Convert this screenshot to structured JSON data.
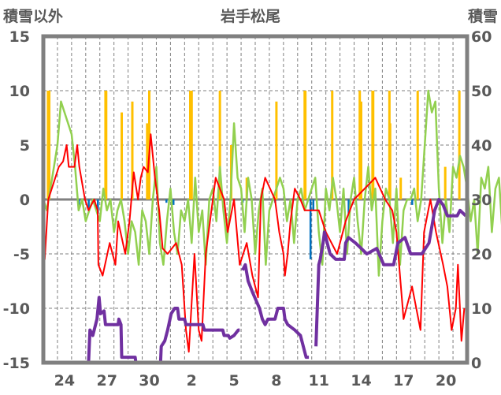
{
  "chart_data": {
    "type": "line",
    "title": "岩手松尾",
    "ylabel_left": "積雪以外",
    "ylabel_right": "積雪",
    "ylim_left": [
      -15,
      15
    ],
    "ylim_right": [
      0,
      60
    ],
    "yticks_left": [
      "15",
      "10",
      "5",
      "0",
      "-5",
      "-10",
      "-15"
    ],
    "yticks_left_values": [
      15,
      10,
      5,
      0,
      -5,
      -10,
      -15
    ],
    "yticks_right": [
      "60",
      "50",
      "40",
      "30",
      "20",
      "10",
      "0"
    ],
    "yticks_right_values": [
      60,
      50,
      40,
      30,
      20,
      10,
      0
    ],
    "xlim_days": [
      0,
      30
    ],
    "xtick_labels": [
      "24",
      "27",
      "30",
      "2",
      "5",
      "8",
      "11",
      "14",
      "17",
      "20"
    ],
    "xtick_day_centers": [
      1.5,
      4.5,
      7.5,
      10.5,
      13.5,
      16.5,
      19.5,
      22.5,
      25.5,
      28.5
    ],
    "grid": true,
    "colors": {
      "precip": "#FFC000",
      "negative": "#0070C0",
      "green": "#92D050",
      "temperature": "#FF0000",
      "snow_depth": "#7030A0",
      "frame": "#808080"
    },
    "bars_orange": [
      [
        0.33,
        10
      ],
      [
        0.42,
        10
      ],
      [
        4.4,
        10
      ],
      [
        4.45,
        10
      ],
      [
        5.55,
        8
      ],
      [
        6.3,
        9
      ],
      [
        7.35,
        7
      ],
      [
        7.5,
        10
      ],
      [
        10.4,
        10
      ],
      [
        10.5,
        10
      ],
      [
        12.5,
        10
      ],
      [
        13.3,
        5
      ],
      [
        14.4,
        2
      ],
      [
        16.5,
        9
      ],
      [
        18.5,
        10
      ],
      [
        18.55,
        10
      ],
      [
        20.45,
        10
      ],
      [
        22.4,
        10
      ],
      [
        22.5,
        9
      ],
      [
        23.3,
        10
      ],
      [
        23.35,
        10
      ],
      [
        24.5,
        10
      ],
      [
        24.55,
        7
      ],
      [
        25.3,
        2
      ],
      [
        26.5,
        10
      ],
      [
        28.45,
        3
      ],
      [
        29.45,
        10
      ]
    ],
    "bars_blue": [
      [
        2.5,
        -0.7
      ],
      [
        3.2,
        -1
      ],
      [
        3.85,
        -1.3
      ],
      [
        8.7,
        -0.3
      ],
      [
        9.2,
        -0.5
      ],
      [
        14.1,
        -0.3
      ],
      [
        16.4,
        -0.3
      ],
      [
        18.9,
        -5.5
      ],
      [
        19.1,
        -1
      ],
      [
        21.6,
        -1.5
      ],
      [
        26.1,
        -0.5
      ]
    ],
    "green_series": {
      "start": 0,
      "step": 0.25,
      "values": [
        0,
        -1,
        1,
        3,
        5,
        9,
        8,
        7,
        6,
        3,
        -1,
        0,
        -2,
        -1,
        0,
        -1,
        -2,
        1,
        -1,
        0,
        -3,
        -1,
        0,
        -2,
        -5,
        -2,
        -3,
        -6,
        -1,
        -2,
        -5,
        0,
        3,
        -4,
        -6,
        -2,
        1,
        -3,
        -5,
        -1,
        -2,
        0,
        -4,
        2,
        -3,
        -1,
        -6,
        0,
        1,
        -2,
        3,
        -1,
        -4,
        0,
        7,
        2,
        1,
        -3,
        2,
        0,
        -5,
        -1,
        1,
        -6,
        -1,
        0,
        1,
        2,
        1,
        -2,
        0,
        -4,
        0,
        1,
        -1,
        0,
        1,
        2,
        -3,
        -6,
        1,
        -1,
        2,
        0,
        -3,
        1,
        -5,
        0,
        2,
        -2,
        -5,
        0,
        3,
        -1,
        1,
        -7,
        -2,
        1,
        0,
        -4,
        1,
        -6,
        -1,
        0,
        0,
        1,
        -2,
        0,
        5,
        10,
        8,
        9,
        1,
        -4,
        0,
        -3,
        3,
        2,
        4,
        3,
        1,
        -2,
        0,
        -5,
        2,
        1,
        3,
        -3,
        1,
        2,
        -3,
        0,
        8,
        7,
        3,
        2,
        -1,
        0,
        1,
        -3,
        0,
        -2,
        3,
        1,
        -4,
        2,
        0,
        -3,
        1,
        -6,
        -2,
        -7,
        1,
        2,
        0,
        -3,
        1,
        -6,
        2,
        -1,
        3,
        0,
        -5,
        -2,
        4,
        -3,
        0,
        -6,
        1,
        3,
        -4,
        -1,
        0,
        -6,
        -3,
        -2,
        2,
        1,
        -4,
        -1,
        0,
        -3,
        1,
        -2,
        -4,
        0,
        1,
        -2,
        0,
        -3,
        -1,
        -5,
        0,
        -2,
        1,
        -6,
        0,
        1,
        -3,
        0,
        -1,
        0,
        -4,
        1,
        2,
        -2,
        0,
        -1,
        0,
        -2,
        1,
        -3,
        3,
        0,
        -1,
        1,
        0,
        -3,
        -1,
        2,
        -2,
        -4,
        0,
        1,
        0,
        1,
        -1,
        6,
        0,
        -3,
        1,
        2,
        0,
        -1,
        1,
        0,
        1,
        -2,
        0,
        0
      ]
    },
    "red_series": [
      [
        0,
        -5
      ],
      [
        0.1,
        -5.5
      ],
      [
        0.35,
        0
      ],
      [
        0.85,
        2
      ],
      [
        1.1,
        3
      ],
      [
        1.4,
        3.5
      ],
      [
        1.65,
        5
      ],
      [
        1.8,
        3
      ],
      [
        2.2,
        3
      ],
      [
        2.4,
        5
      ],
      [
        2.55,
        3
      ],
      [
        2.95,
        0
      ],
      [
        3.2,
        -1
      ],
      [
        3.6,
        0
      ],
      [
        3.85,
        -1
      ],
      [
        3.9,
        -6
      ],
      [
        4.2,
        -7
      ],
      [
        4.7,
        -4
      ],
      [
        5.1,
        -6
      ],
      [
        5.3,
        -2
      ],
      [
        5.8,
        -5
      ],
      [
        6.1,
        -2
      ],
      [
        6.4,
        2.5
      ],
      [
        6.7,
        0
      ],
      [
        6.9,
        2
      ],
      [
        7.1,
        3
      ],
      [
        7.4,
        2.5
      ],
      [
        7.6,
        6
      ],
      [
        7.9,
        2
      ],
      [
        8.2,
        -1
      ],
      [
        8.45,
        -4.5
      ],
      [
        8.8,
        -5
      ],
      [
        9.4,
        -4
      ],
      [
        9.8,
        -6
      ],
      [
        10.1,
        -12
      ],
      [
        10.3,
        -14
      ],
      [
        10.7,
        -5
      ],
      [
        11.0,
        -12
      ],
      [
        11.2,
        -13
      ],
      [
        11.5,
        -5
      ],
      [
        12.0,
        0
      ],
      [
        12.2,
        2
      ],
      [
        12.8,
        0
      ],
      [
        13.05,
        -3
      ],
      [
        13.5,
        0
      ],
      [
        13.9,
        -6
      ],
      [
        14.4,
        -4
      ],
      [
        14.8,
        -7
      ],
      [
        15.2,
        -9
      ],
      [
        15.4,
        0
      ],
      [
        15.7,
        2
      ],
      [
        16.4,
        0
      ],
      [
        16.7,
        -3
      ],
      [
        17.0,
        -5
      ],
      [
        17.1,
        -7
      ],
      [
        17.3,
        -5
      ],
      [
        17.5,
        -2
      ],
      [
        17.8,
        1
      ],
      [
        18.2,
        0
      ],
      [
        18.5,
        -1
      ],
      [
        19.5,
        -1
      ],
      [
        20.0,
        -3
      ],
      [
        20.8,
        -5
      ],
      [
        21.4,
        -2
      ],
      [
        22.0,
        0
      ],
      [
        23.5,
        2
      ],
      [
        24.2,
        0
      ],
      [
        24.7,
        -1
      ],
      [
        25.0,
        -3
      ],
      [
        25.5,
        -11
      ],
      [
        26.1,
        -8
      ],
      [
        26.7,
        -12
      ],
      [
        26.95,
        -3
      ],
      [
        27.4,
        0
      ],
      [
        27.8,
        -3
      ],
      [
        28.3,
        -6
      ],
      [
        28.6,
        -8
      ],
      [
        28.9,
        -12
      ],
      [
        29.2,
        -10
      ],
      [
        29.35,
        -6
      ],
      [
        29.6,
        -13
      ],
      [
        29.8,
        -10
      ]
    ],
    "snow_depth_segments": [
      [
        [
          0,
          0
        ],
        [
          3.2,
          0
        ],
        [
          3.3,
          6
        ],
        [
          3.5,
          5
        ],
        [
          3.8,
          8
        ],
        [
          3.95,
          12
        ],
        [
          4.05,
          9
        ],
        [
          4.3,
          9.5
        ],
        [
          4.4,
          7
        ],
        [
          5.3,
          7
        ],
        [
          5.35,
          8
        ],
        [
          5.5,
          7
        ],
        [
          5.55,
          1
        ],
        [
          6.5,
          1
        ],
        [
          6.55,
          0
        ],
        [
          8.3,
          0
        ],
        [
          8.35,
          3
        ],
        [
          8.6,
          4
        ],
        [
          8.8,
          6
        ],
        [
          9.05,
          9
        ],
        [
          9.3,
          10
        ],
        [
          9.5,
          10
        ],
        [
          9.6,
          8
        ],
        [
          10.0,
          8
        ],
        [
          10.1,
          7
        ],
        [
          11.3,
          7
        ],
        [
          11.4,
          6
        ],
        [
          12.7,
          6
        ],
        [
          12.8,
          5
        ],
        [
          13.1,
          5
        ],
        [
          13.2,
          4.5
        ],
        [
          13.5,
          5
        ],
        [
          13.8,
          6
        ],
        [
          13.9,
          6
        ]
      ],
      [
        [
          14.1,
          17
        ],
        [
          14.3,
          18
        ],
        [
          14.5,
          15
        ],
        [
          14.8,
          13
        ],
        [
          15.3,
          10
        ],
        [
          15.5,
          8
        ],
        [
          15.7,
          7
        ],
        [
          15.9,
          8
        ],
        [
          16.4,
          8
        ],
        [
          16.6,
          10
        ],
        [
          17.0,
          10
        ],
        [
          17.1,
          8
        ],
        [
          17.3,
          7
        ],
        [
          17.8,
          6
        ],
        [
          18.2,
          5
        ],
        [
          18.6,
          1
        ],
        [
          18.8,
          1
        ]
      ],
      [
        [
          19.3,
          3
        ],
        [
          19.5,
          18
        ],
        [
          19.6,
          19
        ],
        [
          19.8,
          22
        ],
        [
          19.9,
          24
        ],
        [
          20.3,
          20
        ],
        [
          20.7,
          19
        ],
        [
          21.3,
          19
        ],
        [
          21.4,
          22
        ],
        [
          21.6,
          23
        ],
        [
          22.1,
          22
        ],
        [
          22.5,
          21
        ],
        [
          22.9,
          20
        ],
        [
          23.6,
          21
        ],
        [
          24.1,
          18
        ],
        [
          24.8,
          18
        ],
        [
          25.1,
          22
        ],
        [
          25.6,
          23
        ],
        [
          26.0,
          20
        ],
        [
          26.8,
          20
        ],
        [
          27.3,
          22
        ],
        [
          27.7,
          28
        ],
        [
          28.0,
          30
        ],
        [
          28.3,
          29
        ],
        [
          28.6,
          27
        ],
        [
          29.3,
          27
        ],
        [
          29.5,
          28
        ],
        [
          29.9,
          27
        ]
      ]
    ]
  }
}
